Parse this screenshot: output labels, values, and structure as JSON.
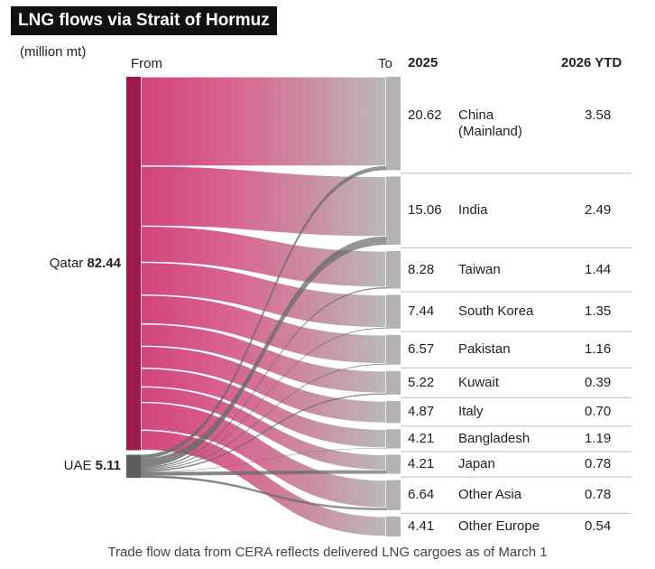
{
  "chart_data": {
    "type": "sankey",
    "title": "LNG flows via Strait of Hormuz",
    "unit": "(million mt)",
    "from_label": "From",
    "to_label": "To",
    "value_header": "2025",
    "ytd_header": "2026 YTD",
    "note": "Trade flow data from CERA reflects delivered LNG cargoes as of March 1",
    "target_color": "#b3b3b3",
    "sources": [
      {
        "name": "Qatar",
        "value": 82.44,
        "color": "#9b1b4a",
        "link_color": "#cf3b72"
      },
      {
        "name": "UAE",
        "value": 5.11,
        "color": "#5e5e5e",
        "link_color": "#6a6a6a"
      }
    ],
    "targets": [
      {
        "name": "China\n(Mainland)",
        "value": 20.62,
        "ytd": 3.58
      },
      {
        "name": "India",
        "value": 15.06,
        "ytd": 2.49
      },
      {
        "name": "Taiwan",
        "value": 8.28,
        "ytd": 1.44
      },
      {
        "name": "South Korea",
        "value": 7.44,
        "ytd": 1.35
      },
      {
        "name": "Pakistan",
        "value": 6.57,
        "ytd": 1.16
      },
      {
        "name": "Kuwait",
        "value": 5.22,
        "ytd": 0.39
      },
      {
        "name": "Italy",
        "value": 4.87,
        "ytd": 0.7,
        "ytd_label": "0.70"
      },
      {
        "name": "Bangladesh",
        "value": 4.21,
        "ytd": 1.19
      },
      {
        "name": "Japan",
        "value": 4.21,
        "ytd": 0.78
      },
      {
        "name": "Other Asia",
        "value": 6.64,
        "ytd": 0.78
      },
      {
        "name": "Other Europe",
        "value": 4.41,
        "ytd": 0.54
      }
    ],
    "links": [
      {
        "source": 0,
        "target": 0,
        "value": 19.72
      },
      {
        "source": 0,
        "target": 1,
        "value": 13.26
      },
      {
        "source": 0,
        "target": 2,
        "value": 7.98
      },
      {
        "source": 0,
        "target": 3,
        "value": 7.24
      },
      {
        "source": 0,
        "target": 4,
        "value": 6.37
      },
      {
        "source": 0,
        "target": 5,
        "value": 4.92
      },
      {
        "source": 0,
        "target": 6,
        "value": 4.87
      },
      {
        "source": 0,
        "target": 7,
        "value": 4.11
      },
      {
        "source": 0,
        "target": 8,
        "value": 3.41
      },
      {
        "source": 0,
        "target": 9,
        "value": 6.14
      },
      {
        "source": 0,
        "target": 10,
        "value": 4.41
      },
      {
        "source": 1,
        "target": 0,
        "value": 0.9
      },
      {
        "source": 1,
        "target": 1,
        "value": 1.8
      },
      {
        "source": 1,
        "target": 2,
        "value": 0.3
      },
      {
        "source": 1,
        "target": 3,
        "value": 0.2
      },
      {
        "source": 1,
        "target": 4,
        "value": 0.2
      },
      {
        "source": 1,
        "target": 5,
        "value": 0.3
      },
      {
        "source": 1,
        "target": 7,
        "value": 0.1
      },
      {
        "source": 1,
        "target": 8,
        "value": 0.8
      },
      {
        "source": 1,
        "target": 9,
        "value": 0.5
      }
    ]
  }
}
